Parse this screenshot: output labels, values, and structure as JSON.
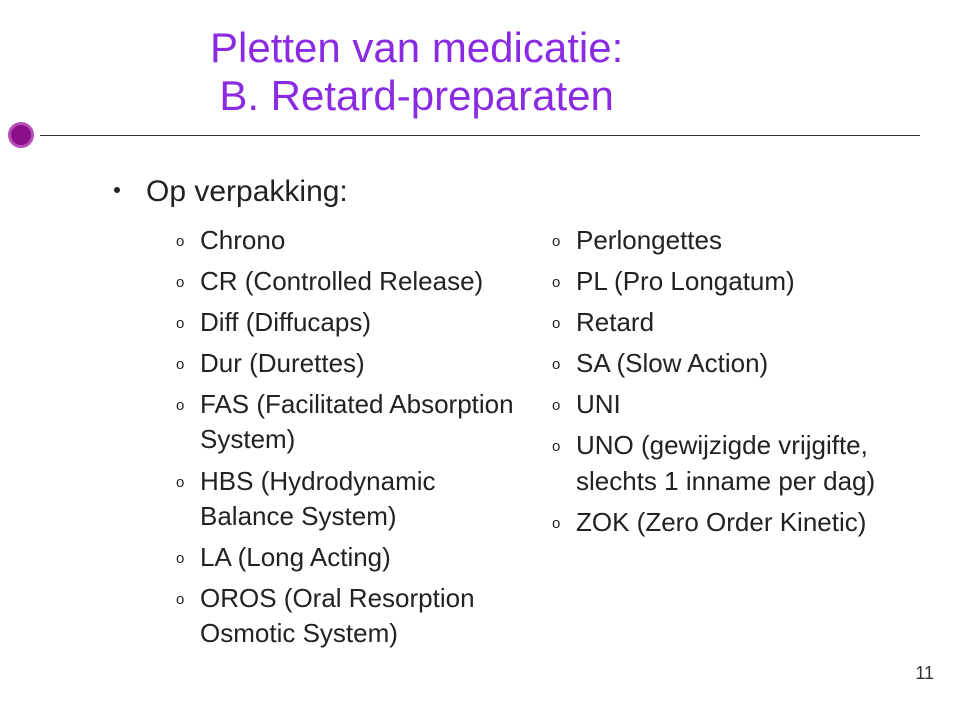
{
  "title_line1": "Pletten van medicatie:",
  "title_line2": "B. Retard-preparaten",
  "lead": "Op verpakking:",
  "left_items": [
    "Chrono",
    "CR (Controlled Release)",
    "Diff (Diffucaps)",
    "Dur (Durettes)",
    "FAS (Facilitated Absorption System)",
    "HBS (Hydrodynamic Balance System)",
    "LA (Long Acting)",
    "OROS (Oral Resorption Osmotic System)"
  ],
  "right_items": [
    "Perlongettes",
    "PL (Pro Longatum)",
    "Retard",
    "SA (Slow Action)",
    "UNI",
    "UNO (gewijzigde vrijgifte, slechts 1 inname per dag)",
    "ZOK (Zero Order Kinetic)"
  ],
  "sub_marker": "o",
  "page_number": "11",
  "colors": {
    "title": "#8a2be2",
    "decor_fill": "#8a0f8a",
    "decor_border": "#b84fb8",
    "text": "#222222",
    "background": "#ffffff"
  }
}
